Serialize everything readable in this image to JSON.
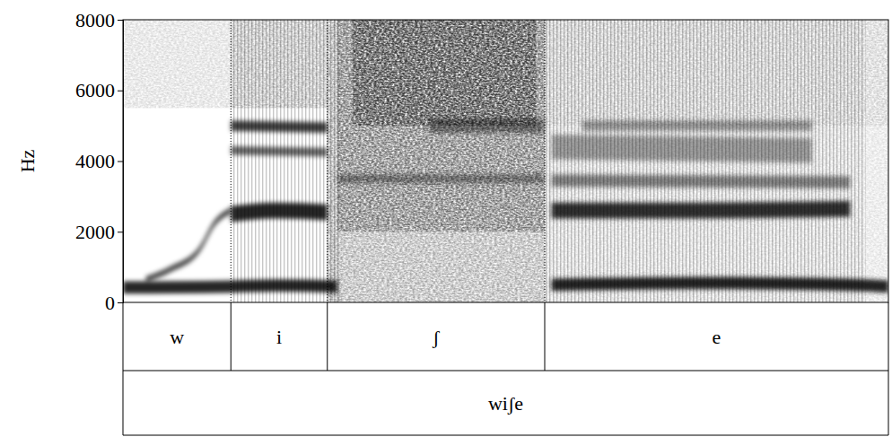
{
  "chart_data": {
    "type": "spectrogram",
    "y_label": "Hz",
    "ylim": [
      0,
      8000
    ],
    "yticks": [
      0,
      2000,
      4000,
      6000,
      8000
    ],
    "xlim": [
      0,
      1
    ],
    "tick_labels": "y",
    "tiers": [
      {
        "intervals": [
          {
            "start": 0,
            "end": 0.141,
            "label": "w"
          },
          {
            "start": 0.141,
            "end": 0.267,
            "label": "i"
          },
          {
            "start": 0.267,
            "end": 0.551,
            "label": "ʃ"
          },
          {
            "start": 0.551,
            "end": 1,
            "label": "e"
          }
        ]
      },
      {
        "intervals": [
          {
            "start": 0,
            "end": 1,
            "label": "wiʃe"
          }
        ]
      }
    ],
    "noise": [
      {
        "start": 0.267,
        "end": 0.551,
        "low": 0,
        "high": 8000,
        "level": 0.35
      },
      {
        "start": 0.28,
        "end": 0.551,
        "low": 2000,
        "high": 8000,
        "level": 0.35
      },
      {
        "start": 0.3,
        "end": 0.54,
        "low": 5000,
        "high": 8000,
        "level": 0.45
      },
      {
        "start": 0.551,
        "end": 1,
        "low": 5000,
        "high": 8000,
        "level": 0.2
      },
      {
        "start": 0.551,
        "end": 1,
        "low": 0,
        "high": 5000,
        "level": 0.12
      },
      {
        "start": 0,
        "end": 0.141,
        "low": 5500,
        "high": 8000,
        "level": 0.15
      },
      {
        "start": 0.141,
        "end": 0.267,
        "low": 5500,
        "high": 8000,
        "level": 0.25
      }
    ],
    "bands": [
      {
        "x": [
          0,
          0.07,
          0.141,
          0.2,
          0.28
        ],
        "y": [
          420,
          430,
          450,
          480,
          450
        ],
        "bandwidth": 350,
        "level": 0.85
      },
      {
        "x": [
          0.03,
          0.062,
          0.1,
          0.12,
          0.141
        ],
        "y": [
          650,
          940,
          1500,
          2250,
          2600
        ],
        "bandwidth": 180,
        "level": 0.7
      },
      {
        "x": [
          0.141,
          0.2,
          0.267
        ],
        "y": [
          2500,
          2600,
          2550
        ],
        "bandwidth": 450,
        "level": 0.85
      },
      {
        "x": [
          0.141,
          0.267
        ],
        "y": [
          4300,
          4250
        ],
        "bandwidth": 250,
        "level": 0.6
      },
      {
        "x": [
          0.141,
          0.267
        ],
        "y": [
          5000,
          4950
        ],
        "bandwidth": 300,
        "level": 0.75
      },
      {
        "x": [
          0.56,
          0.75,
          0.95,
          1
        ],
        "y": [
          500,
          550,
          500,
          450
        ],
        "bandwidth": 350,
        "level": 0.85
      },
      {
        "x": [
          0.56,
          0.75,
          0.95
        ],
        "y": [
          2600,
          2600,
          2650
        ],
        "bandwidth": 450,
        "level": 0.8
      },
      {
        "x": [
          0.56,
          0.95
        ],
        "y": [
          3450,
          3400
        ],
        "bandwidth": 350,
        "level": 0.45
      },
      {
        "x": [
          0.56,
          0.9
        ],
        "y": [
          4400,
          4300
        ],
        "bandwidth": 700,
        "level": 0.35
      },
      {
        "x": [
          0.6,
          0.9
        ],
        "y": [
          5000,
          5000
        ],
        "bandwidth": 300,
        "level": 0.35
      },
      {
        "x": [
          0.28,
          0.55
        ],
        "y": [
          3500,
          3500
        ],
        "bandwidth": 250,
        "level": 0.35
      },
      {
        "x": [
          0.4,
          0.55
        ],
        "y": [
          5000,
          5000
        ],
        "bandwidth": 400,
        "level": 0.4
      }
    ],
    "voicing": [
      {
        "start": 0.141,
        "end": 0.285
      },
      {
        "start": 0.551,
        "end": 0.97
      }
    ]
  }
}
